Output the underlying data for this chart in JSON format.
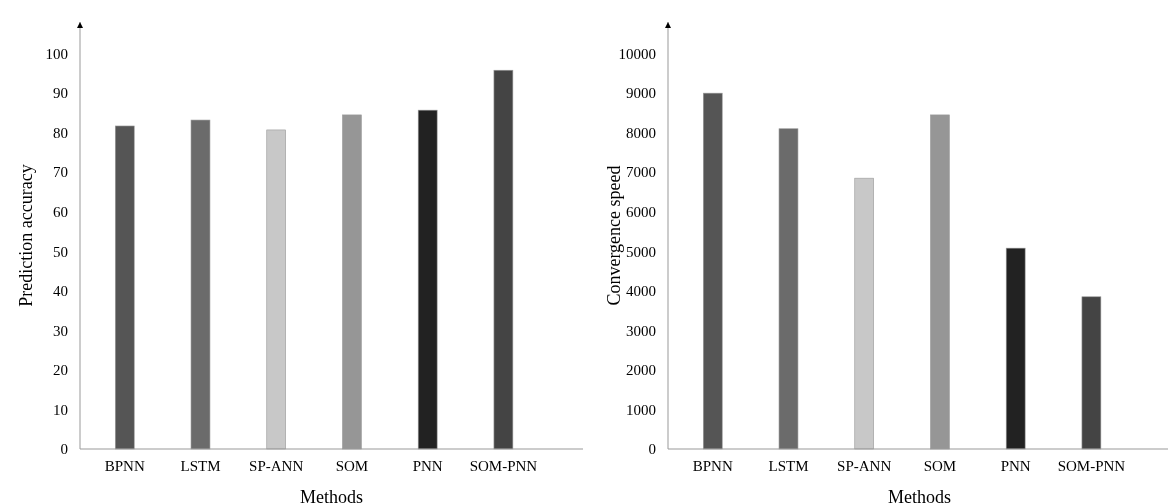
{
  "chart_data": [
    {
      "type": "bar",
      "xlabel": "Methods",
      "ylabel": "Prediction accuracy",
      "categories": [
        "BPNN",
        "LSTM",
        "SP-ANN",
        "SOM",
        "PNN",
        "SOM-PNN"
      ],
      "values": [
        81.7,
        83.2,
        80.7,
        84.5,
        85.7,
        95.8
      ],
      "colors": [
        "#555555",
        "#6b6b6b",
        "#c8c8c8",
        "#969696",
        "#222222",
        "#444444"
      ],
      "ylim": [
        0,
        108
      ],
      "yticks": [
        0,
        10,
        20,
        30,
        40,
        50,
        60,
        70,
        80,
        90,
        100
      ],
      "grid": false
    },
    {
      "type": "bar",
      "xlabel": "Methods",
      "ylabel": "Convergence speed",
      "categories": [
        "BPNN",
        "LSTM",
        "SP-ANN",
        "SOM",
        "PNN",
        "SOM-PNN"
      ],
      "values": [
        9000,
        8100,
        6850,
        8450,
        5080,
        3850
      ],
      "colors": [
        "#555555",
        "#6b6b6b",
        "#c8c8c8",
        "#969696",
        "#222222",
        "#444444"
      ],
      "ylim": [
        0,
        10800
      ],
      "yticks": [
        0,
        1000,
        2000,
        3000,
        4000,
        5000,
        6000,
        7000,
        8000,
        9000,
        10000
      ],
      "grid": false
    }
  ]
}
